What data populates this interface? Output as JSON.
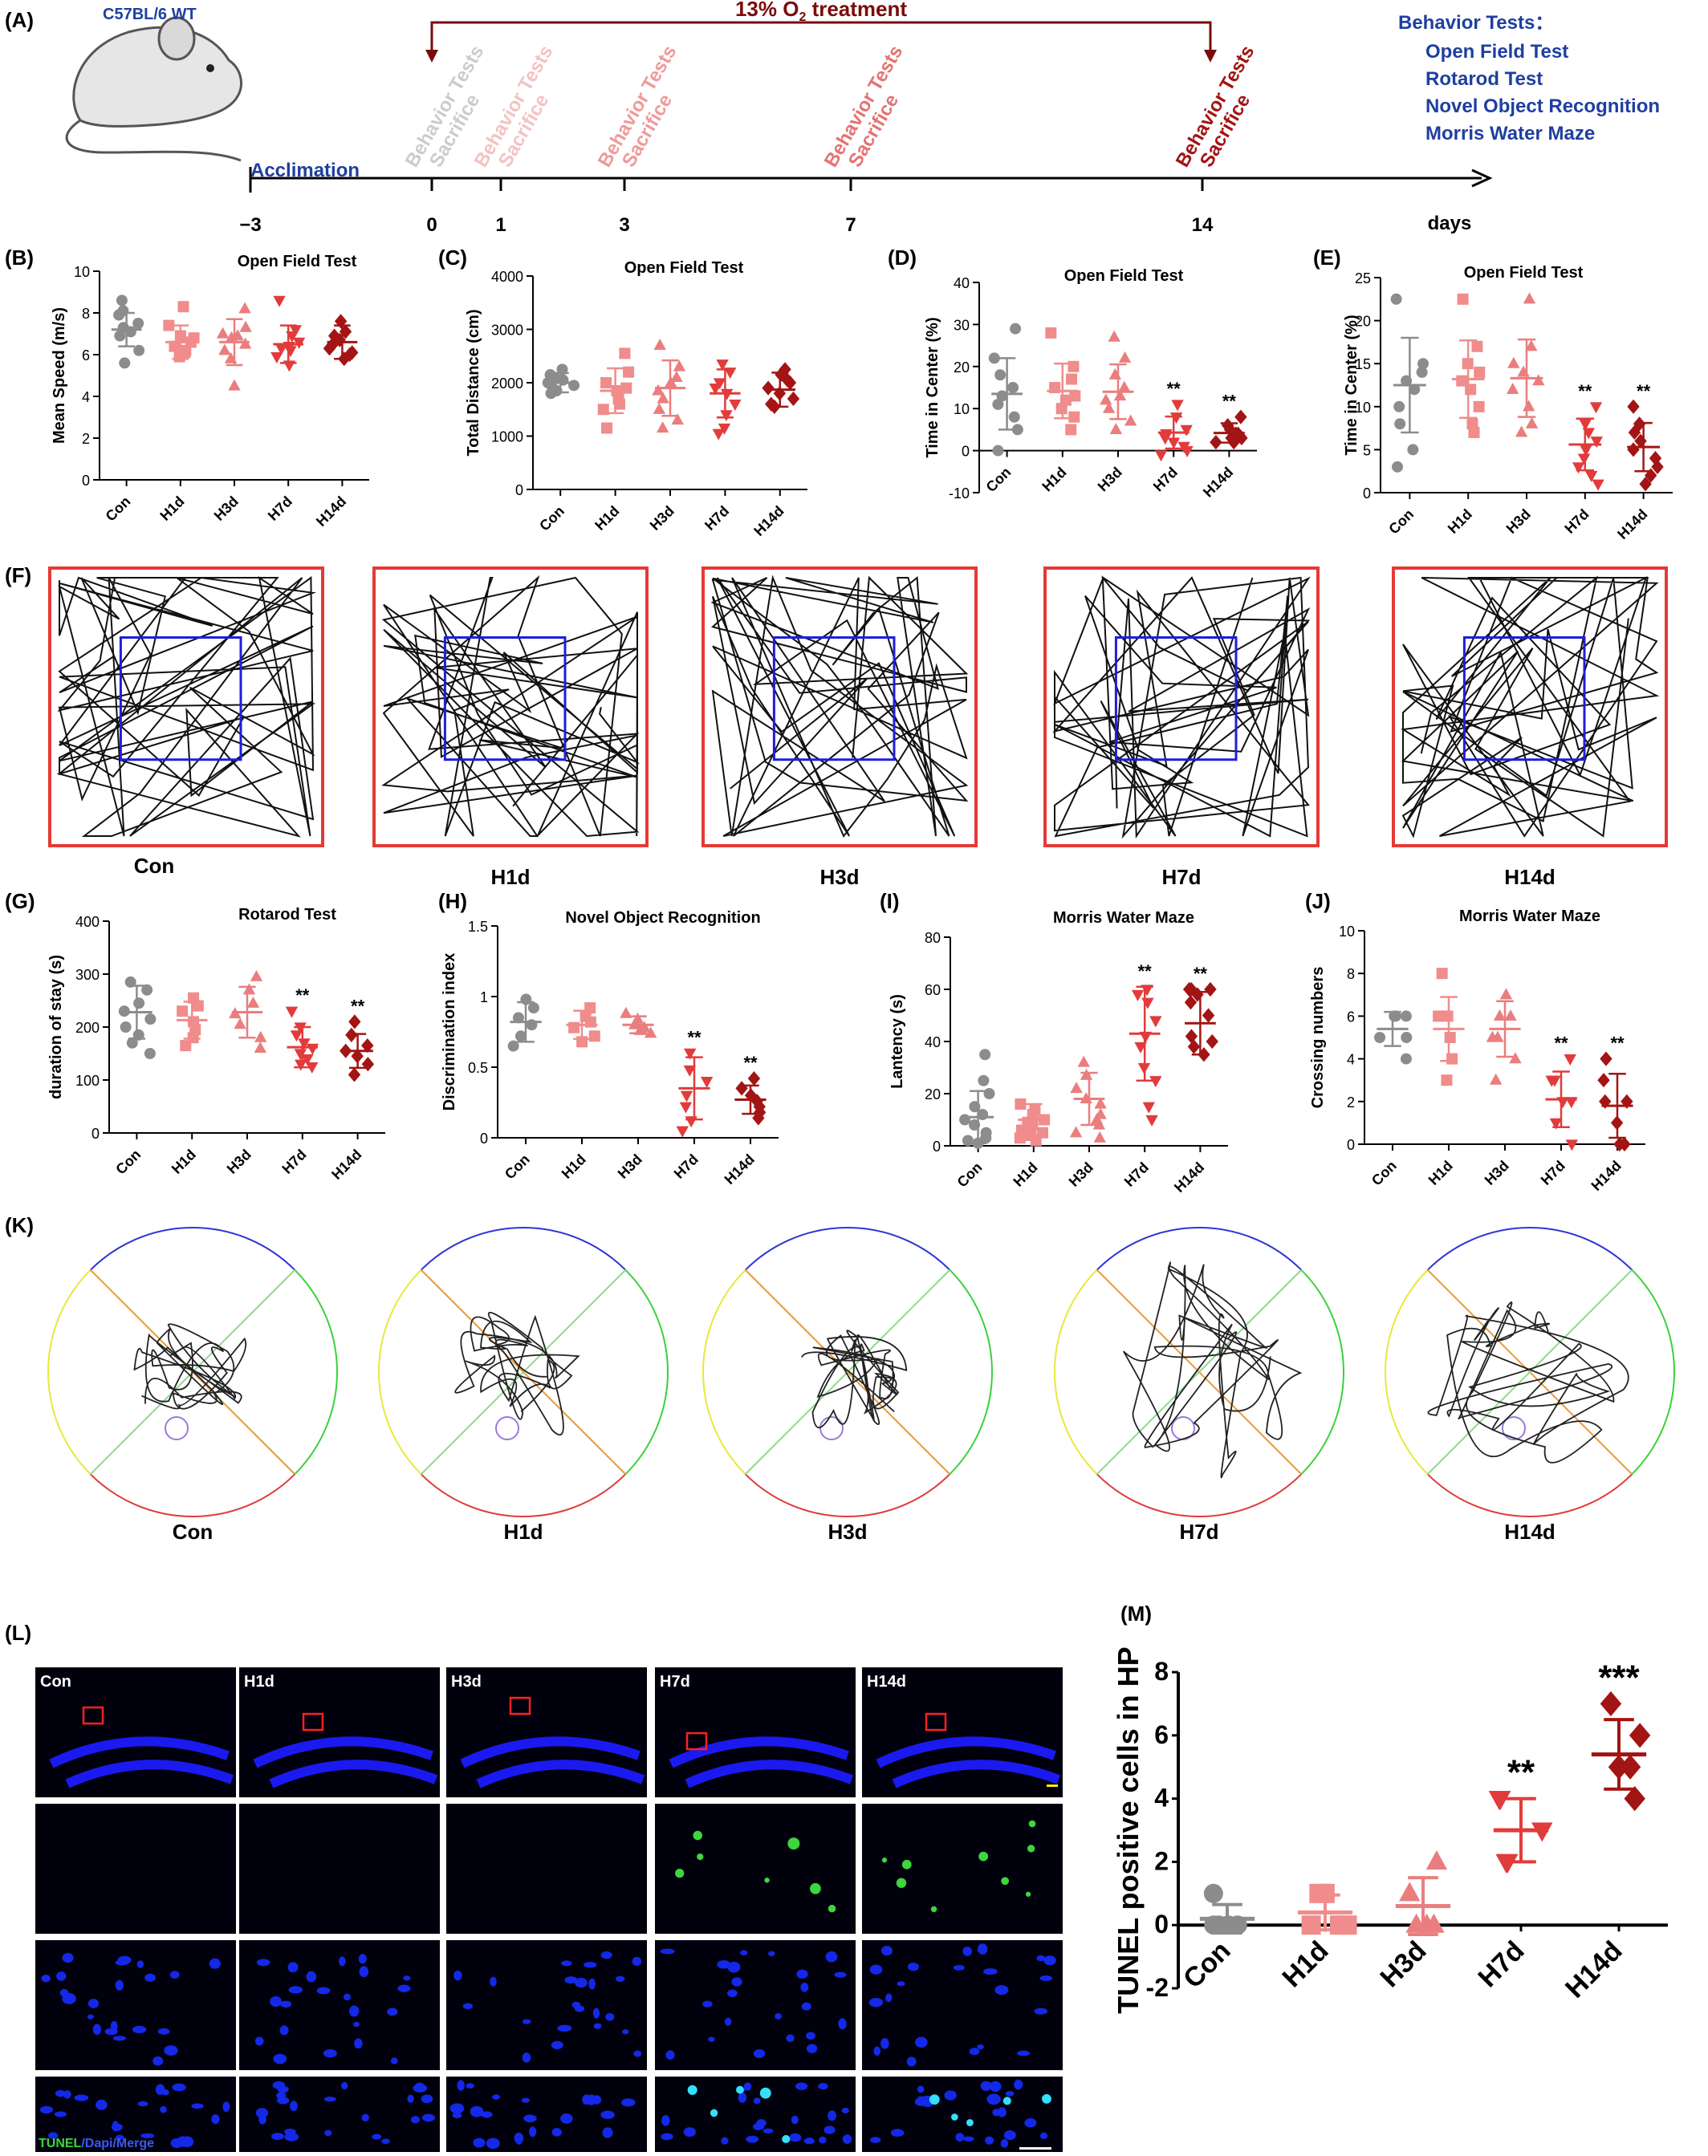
{
  "colors": {
    "con": "#8c8c8c",
    "h1d": "#f08c8c",
    "h3d": "#ea7e7e",
    "h7d": "#e23b3b",
    "h14d": "#a31414",
    "axis": "#000000",
    "title": "#7a0c0c",
    "blue_text": "#1f3fa0"
  },
  "panelA": {
    "label": "(A)",
    "mouse_label": "C57BL/6  WT",
    "treatment": "13% O",
    "treatment_sub": "2",
    "treatment_suffix": " treatment",
    "acclimation": "Acclimation",
    "days_label": "days",
    "ticks": [
      "−3",
      "0",
      "1",
      "3",
      "7",
      "14"
    ],
    "bt_header": "Behavior Tests：",
    "bt_list": [
      "Open Field Test",
      "Rotarod Test",
      "Novel Object Recognition",
      "Morris Water Maze"
    ],
    "timepoint_label_1": "Behavior Tests",
    "timepoint_label_2": "Sacrifice"
  },
  "panelF": {
    "label": "(F)",
    "groups": [
      "Con",
      "H1d",
      "H3d",
      "H7d",
      "H14d"
    ]
  },
  "panelK": {
    "label": "(K)",
    "groups": [
      "Con",
      "H1d",
      "H3d",
      "H7d",
      "H14d"
    ]
  },
  "panelL": {
    "label": "(L)",
    "groups": [
      "Con",
      "H1d",
      "H3d",
      "H7d",
      "H14d"
    ],
    "legend_green": "TUNEL",
    "legend_blue": "/Dapi",
    "legend_merge": "/Merge"
  },
  "chart_data": [
    {
      "id": "B",
      "label": "(B)",
      "type": "scatter",
      "title": "Open Field Test",
      "ylabel": "Mean Speed (m/s)",
      "ylim": [
        0,
        10
      ],
      "yticks": [
        0,
        2,
        4,
        6,
        8,
        10
      ],
      "categories": [
        "Con",
        "H1d",
        "H3d",
        "H7d",
        "H14d"
      ],
      "means": [
        7.2,
        6.6,
        6.6,
        6.5,
        6.6
      ],
      "sd": [
        0.8,
        0.8,
        1.1,
        0.9,
        0.8
      ],
      "points": [
        [
          8.6,
          7.9,
          7.5,
          7.3,
          7.1,
          6.9,
          6.2,
          5.6,
          8.1
        ],
        [
          8.3,
          7.4,
          6.9,
          6.6,
          6.4,
          6.2,
          6.1,
          5.9,
          6.8
        ],
        [
          8.2,
          7.3,
          7.0,
          6.8,
          6.5,
          6.2,
          5.8,
          4.5,
          6.9
        ],
        [
          8.6,
          7.2,
          6.9,
          6.6,
          6.4,
          6.2,
          5.9,
          5.5,
          6.3
        ],
        [
          7.6,
          7.1,
          6.9,
          6.7,
          6.5,
          6.3,
          6.0,
          5.8,
          6.1
        ]
      ],
      "significance": [
        "",
        "",
        "",
        "",
        ""
      ]
    },
    {
      "id": "C",
      "label": "(C)",
      "type": "scatter",
      "title": "Open Field Test",
      "ylabel": "Total Distance (cm)",
      "ylim": [
        0,
        4000
      ],
      "yticks": [
        0,
        1000,
        2000,
        3000,
        4000
      ],
      "categories": [
        "Con",
        "H1d",
        "H3d",
        "H7d",
        "H14d"
      ],
      "means": [
        2000,
        1850,
        1900,
        1800,
        1870
      ],
      "sd": [
        180,
        420,
        520,
        450,
        320
      ],
      "points": [
        [
          2250,
          2150,
          2050,
          2000,
          1950,
          1900,
          1850,
          1800,
          2100
        ],
        [
          2550,
          2200,
          2000,
          1850,
          1700,
          1600,
          1500,
          1150,
          1900
        ],
        [
          2700,
          2300,
          2100,
          1850,
          1700,
          1500,
          1300,
          1150,
          2000
        ],
        [
          2350,
          2200,
          2000,
          1800,
          1600,
          1400,
          1150,
          1050,
          1900
        ],
        [
          2250,
          2150,
          2000,
          1900,
          1800,
          1700,
          1600,
          1550,
          2050
        ]
      ],
      "significance": [
        "",
        "",
        "",
        "",
        ""
      ]
    },
    {
      "id": "D",
      "label": "(D)",
      "type": "scatter",
      "title": "Open Field Test",
      "ylabel": "Time in Center (%)",
      "ylim": [
        -10,
        40
      ],
      "yticks": [
        -10,
        0,
        10,
        20,
        30,
        40
      ],
      "categories": [
        "Con",
        "H1d",
        "H3d",
        "H7d",
        "H14d"
      ],
      "means": [
        13.5,
        14.2,
        14.0,
        4.3,
        4.2
      ],
      "sd": [
        8.5,
        6.5,
        6.5,
        3.8,
        2.3
      ],
      "points": [
        [
          29,
          22,
          18,
          15,
          13,
          11,
          8,
          5,
          0
        ],
        [
          28,
          20,
          17,
          15,
          13,
          12,
          10,
          8,
          5
        ],
        [
          27,
          22,
          18,
          15,
          13,
          12,
          10,
          7,
          5
        ],
        [
          11,
          8,
          5,
          4,
          3,
          2,
          1,
          0,
          -1
        ],
        [
          8,
          6,
          5,
          4,
          4,
          3,
          3,
          2,
          2
        ]
      ],
      "significance": [
        "",
        "",
        "",
        "**",
        "**"
      ]
    },
    {
      "id": "E",
      "label": "(E)",
      "type": "scatter",
      "title": "Open Field Test",
      "ylabel": "Time in Center (%)",
      "ylim": [
        0,
        25
      ],
      "yticks": [
        0,
        5,
        10,
        15,
        20,
        25
      ],
      "categories": [
        "Con",
        "H1d",
        "H3d",
        "H7d",
        "H14d"
      ],
      "means": [
        12.5,
        13.2,
        13.3,
        5.6,
        5.3
      ],
      "sd": [
        5.5,
        4.5,
        4.5,
        3.0,
        2.8
      ],
      "points": [
        [
          22.5,
          15,
          14,
          13,
          12,
          10,
          8,
          5,
          3
        ],
        [
          22.5,
          17,
          15,
          14,
          13,
          12,
          10,
          8,
          7
        ],
        [
          22.5,
          17,
          15,
          14,
          13,
          12,
          10,
          8,
          7
        ],
        [
          10,
          8,
          7,
          6,
          5,
          4,
          3,
          2,
          1
        ],
        [
          10,
          8,
          7,
          6,
          5,
          4,
          3,
          2,
          1
        ]
      ],
      "significance": [
        "",
        "",
        "",
        "**",
        "**"
      ]
    },
    {
      "id": "G",
      "label": "(G)",
      "type": "scatter",
      "title": "Rotarod Test",
      "ylabel": "duration of stay (s)",
      "ylim": [
        0,
        400
      ],
      "yticks": [
        0,
        100,
        200,
        300,
        400
      ],
      "categories": [
        "Con",
        "H1d",
        "H3d",
        "H7d",
        "H14d"
      ],
      "means": [
        228,
        213,
        228,
        162,
        155
      ],
      "sd": [
        50,
        35,
        48,
        38,
        32
      ],
      "points": [
        [
          285,
          270,
          245,
          230,
          215,
          200,
          185,
          170,
          150
        ],
        [
          255,
          240,
          230,
          210,
          195,
          180,
          165
        ],
        [
          295,
          270,
          245,
          225,
          205,
          180,
          160
        ],
        [
          230,
          200,
          185,
          170,
          160,
          150,
          140,
          130,
          125
        ],
        [
          210,
          185,
          165,
          155,
          145,
          130,
          110
        ]
      ],
      "significance": [
        "",
        "",
        "",
        "**",
        "**"
      ]
    },
    {
      "id": "H",
      "label": "(H)",
      "type": "scatter",
      "title": "Novel Object Recognition",
      "ylabel": "Discrimination index",
      "ylim": [
        0,
        1.5
      ],
      "yticks": [
        0,
        0.5,
        1.0,
        1.5
      ],
      "categories": [
        "Con",
        "H1d",
        "H3d",
        "H7d",
        "H14d"
      ],
      "means": [
        0.82,
        0.8,
        0.8,
        0.35,
        0.27
      ],
      "sd": [
        0.14,
        0.1,
        0.06,
        0.22,
        0.1
      ],
      "points": [
        [
          0.98,
          0.92,
          0.85,
          0.8,
          0.72,
          0.65
        ],
        [
          0.92,
          0.86,
          0.82,
          0.78,
          0.72,
          0.68
        ],
        [
          0.88,
          0.84,
          0.8,
          0.78,
          0.76,
          0.74
        ],
        [
          0.6,
          0.48,
          0.4,
          0.3,
          0.22,
          0.12,
          0.05
        ],
        [
          0.42,
          0.35,
          0.3,
          0.26,
          0.22,
          0.18,
          0.14
        ]
      ],
      "significance": [
        "",
        "",
        "",
        "**",
        "**"
      ]
    },
    {
      "id": "I",
      "label": "(I)",
      "type": "scatter",
      "title": "Morris Water Maze",
      "ylabel": "Lantency (s)",
      "ylim": [
        0,
        80
      ],
      "yticks": [
        0,
        20,
        40,
        60,
        80
      ],
      "categories": [
        "Con",
        "H1d",
        "H3d",
        "H7d",
        "H14d"
      ],
      "means": [
        11,
        10,
        18,
        43,
        47
      ],
      "sd": [
        10,
        6,
        10,
        18,
        12
      ],
      "points": [
        [
          35,
          25,
          20,
          15,
          12,
          10,
          8,
          5,
          3,
          2,
          1
        ],
        [
          16,
          14,
          12,
          10,
          9,
          8,
          6,
          5,
          4,
          3,
          2
        ],
        [
          32,
          27,
          22,
          18,
          16,
          12,
          10,
          8,
          5,
          3
        ],
        [
          60,
          58,
          55,
          48,
          42,
          38,
          30,
          25,
          15,
          10
        ],
        [
          60,
          60,
          60,
          58,
          55,
          50,
          42,
          40,
          38,
          35
        ]
      ],
      "significance": [
        "",
        "",
        "",
        "**",
        "**"
      ]
    },
    {
      "id": "J",
      "label": "(J)",
      "type": "scatter",
      "title": "Morris Water Maze",
      "ylabel": "Crossing numbers",
      "ylim": [
        0,
        10
      ],
      "yticks": [
        0,
        2,
        4,
        6,
        8,
        10
      ],
      "categories": [
        "Con",
        "H1d",
        "H3d",
        "H7d",
        "H14d"
      ],
      "means": [
        5.4,
        5.4,
        5.4,
        2.1,
        1.8
      ],
      "sd": [
        0.8,
        1.5,
        1.3,
        1.3,
        1.5
      ],
      "points": [
        [
          6,
          6,
          6,
          5,
          5,
          4
        ],
        [
          8,
          6,
          6,
          5,
          4,
          3
        ],
        [
          7,
          6,
          6,
          5,
          5,
          4,
          3
        ],
        [
          4,
          3,
          3,
          2,
          2,
          1,
          0
        ],
        [
          4,
          3,
          2,
          2,
          1,
          0,
          0
        ]
      ],
      "significance": [
        "",
        "",
        "",
        "**",
        "**"
      ]
    },
    {
      "id": "M",
      "label": "(M)",
      "type": "scatter",
      "title": "",
      "ylabel": "TUNEL positive cells in HP",
      "ylim": [
        -2,
        8
      ],
      "yticks": [
        -2,
        0,
        2,
        4,
        6,
        8
      ],
      "categories": [
        "Con",
        "H1d",
        "H3d",
        "H7d",
        "H14d"
      ],
      "means": [
        0.2,
        0.4,
        0.6,
        3.0,
        5.4
      ],
      "sd": [
        0.45,
        0.55,
        0.9,
        1.0,
        1.1
      ],
      "points": [
        [
          1,
          0,
          0,
          0,
          0
        ],
        [
          1,
          1,
          0,
          0,
          0
        ],
        [
          2,
          1,
          0,
          0,
          0
        ],
        [
          4,
          4,
          3,
          2,
          2
        ],
        [
          7,
          6,
          5,
          5,
          4
        ]
      ],
      "significance": [
        "",
        "",
        "",
        "**",
        "***"
      ]
    }
  ]
}
